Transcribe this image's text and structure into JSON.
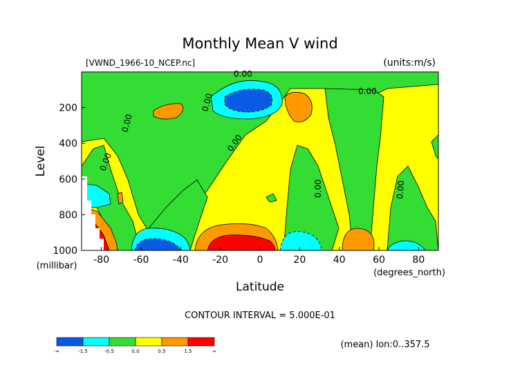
{
  "chart_data": {
    "type": "heatmap",
    "title": "Monthly Mean V wind",
    "file_label": "[VWND_1966-10_NCEP.nc]",
    "units_label": "(units:m/s)",
    "xlabel": "Latitude",
    "xunit": "(degrees_north)",
    "ylabel": "Level",
    "yunit": "(millibar)",
    "xlim": [
      -90,
      90
    ],
    "ylim": [
      1000,
      0
    ],
    "x_ticks": [
      "-80",
      "-60",
      "-40",
      "-20",
      "0",
      "20",
      "40",
      "60",
      "80"
    ],
    "x_tick_values": [
      -80,
      -60,
      -40,
      -20,
      0,
      20,
      40,
      60,
      80
    ],
    "y_ticks": [
      "200",
      "400",
      "600",
      "800",
      "1000"
    ],
    "y_tick_values": [
      200,
      400,
      600,
      800,
      1000
    ],
    "contour_labels": [
      "0.00",
      "0.00",
      "0.00",
      "0.00",
      "0.00",
      "0.00",
      "0.00",
      "0.00"
    ],
    "contour_interval": "CONTOUR INTERVAL = 5.000E-01",
    "colorbar": {
      "levels": [
        "-∞",
        "-1.5",
        "-0.5",
        "0.0",
        "0.5",
        "1.5",
        "∞"
      ],
      "colors": [
        "#0a5ae6",
        "#00ffff",
        "#33dd33",
        "#ffff00",
        "#ff9900",
        "#ff0000"
      ]
    },
    "footer_note": "(mean) lon:0..357.5"
  }
}
